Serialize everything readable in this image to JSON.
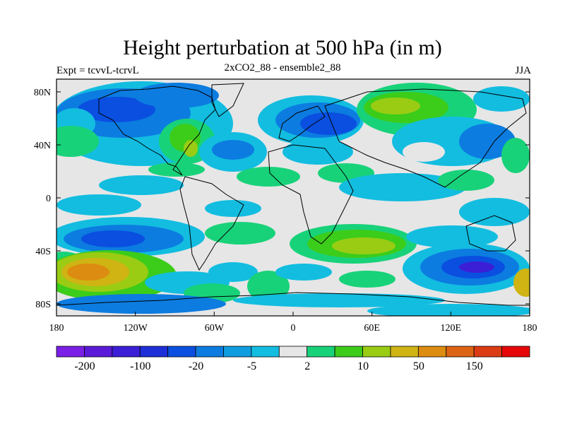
{
  "title": "Height perturbation at 500 hPa (in m)",
  "subtitle_left": "Expt = tcvvL-tcrvL",
  "subtitle_center": "2xCO2_88 - ensemble2_88",
  "subtitle_right": "JJA",
  "lat_ticks": [
    "80N",
    "40N",
    "0",
    "40S",
    "80S"
  ],
  "lon_ticks": [
    "180",
    "120W",
    "60W",
    "0",
    "60E",
    "120E",
    "180"
  ],
  "colorbar": {
    "colors": [
      "#7a1fe6",
      "#5a1ad8",
      "#3b1fd6",
      "#1f2fd8",
      "#0a4fe0",
      "#0c7ce0",
      "#0f9de0",
      "#12bde0",
      "#e6e6e6",
      "#18d27a",
      "#3ccc1a",
      "#9acc14",
      "#cfb414",
      "#dc8c10",
      "#dc6414",
      "#dc3c14",
      "#e60808"
    ],
    "labels": [
      "-200",
      "-100",
      "-20",
      "-5",
      "2",
      "10",
      "50",
      "150"
    ]
  },
  "chart_data": {
    "type": "heatmap",
    "variable": "Height perturbation at 500 hPa",
    "units": "m",
    "season": "JJA",
    "x_range_lon": [
      -180,
      180
    ],
    "y_range_lat": [
      -90,
      90
    ],
    "color_levels": [
      -200,
      -100,
      -20,
      -5,
      2,
      10,
      50,
      150
    ]
  }
}
